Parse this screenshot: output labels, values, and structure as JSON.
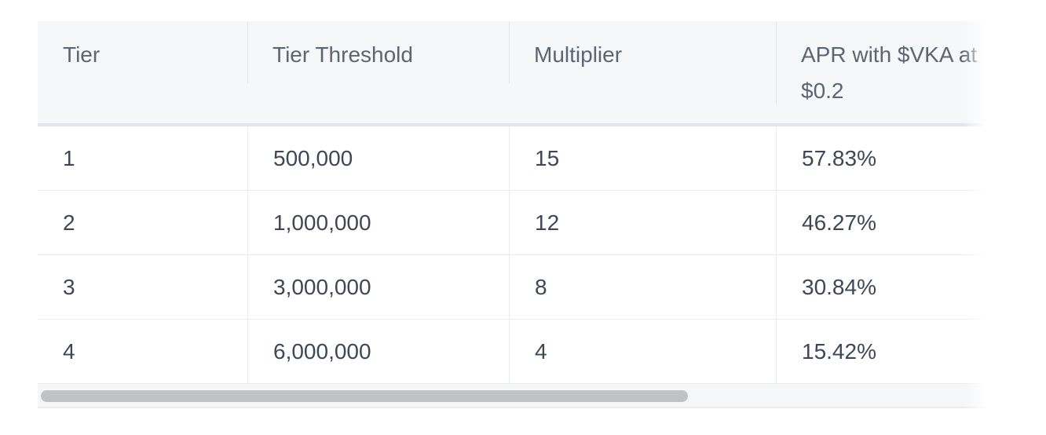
{
  "table": {
    "columns": [
      {
        "id": "tier",
        "label": "Tier"
      },
      {
        "id": "tier_threshold",
        "label": "Tier Threshold"
      },
      {
        "id": "multiplier",
        "label": "Multiplier"
      },
      {
        "id": "apr_vka_0_2",
        "label": "APR with $VKA at $0.2"
      }
    ],
    "rows": [
      {
        "tier": "1",
        "tier_threshold": "500,000",
        "multiplier": "15",
        "apr_vka_0_2": "57.83%"
      },
      {
        "tier": "2",
        "tier_threshold": "1,000,000",
        "multiplier": "12",
        "apr_vka_0_2": "46.27%"
      },
      {
        "tier": "3",
        "tier_threshold": "3,000,000",
        "multiplier": "8",
        "apr_vka_0_2": "30.84%"
      },
      {
        "tier": "4",
        "tier_threshold": "6,000,000",
        "multiplier": "4",
        "apr_vka_0_2": "15.42%"
      }
    ]
  },
  "scrollbar": {
    "orientation": "horizontal",
    "thumb_position": "start"
  },
  "colors": {
    "header_bg": "#f6f7f9",
    "header_text": "#5b6573",
    "body_text": "#3d4854",
    "header_border": "#e2e6eb",
    "divider": "#e1e5ea",
    "row_border": "#e9ebef",
    "scrollbar_track": "#f5f6f8",
    "scrollbar_thumb": "#c1c2c5"
  }
}
